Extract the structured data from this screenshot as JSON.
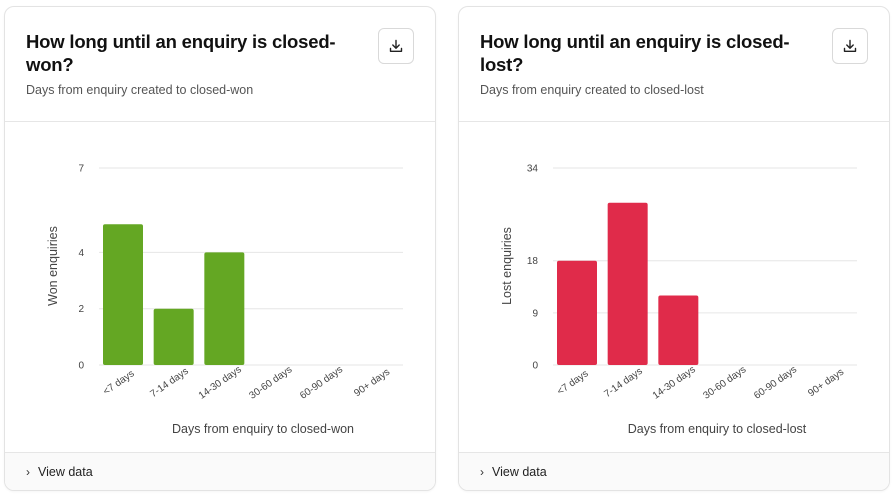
{
  "charts": [
    {
      "title": "How long until an enquiry is closed-won?",
      "subtitle": "Days from enquiry created to closed-won",
      "download_icon": "download-icon",
      "footer_label": "View data",
      "footer_icon": "chevron-right-icon",
      "color": "#64a723"
    },
    {
      "title": "How long until an enquiry is closed-lost?",
      "subtitle": "Days from enquiry created to closed-lost",
      "download_icon": "download-icon",
      "footer_label": "View data",
      "footer_icon": "chevron-right-icon",
      "color": "#e02b4a"
    }
  ],
  "chart_data": [
    {
      "type": "bar",
      "categories": [
        "<7 days",
        "7-14 days",
        "14-30 days",
        "30-60 days",
        "60-90 days",
        "90+ days"
      ],
      "values": [
        5,
        2,
        4,
        0,
        0,
        0
      ],
      "xlabel": "Days from enquiry to closed-won",
      "ylabel": "Won enquiries",
      "ylim": [
        0,
        7
      ],
      "yticks": [
        0,
        2,
        4,
        7
      ],
      "grid": true,
      "color": "#64a723"
    },
    {
      "type": "bar",
      "categories": [
        "<7 days",
        "7-14 days",
        "14-30 days",
        "30-60 days",
        "60-90 days",
        "90+ days"
      ],
      "values": [
        18,
        28,
        12,
        0,
        0,
        0
      ],
      "xlabel": "Days from enquiry to closed-lost",
      "ylabel": "Lost enquiries",
      "ylim": [
        0,
        34
      ],
      "yticks": [
        0,
        9,
        18,
        34
      ],
      "grid": true,
      "color": "#e02b4a"
    }
  ]
}
